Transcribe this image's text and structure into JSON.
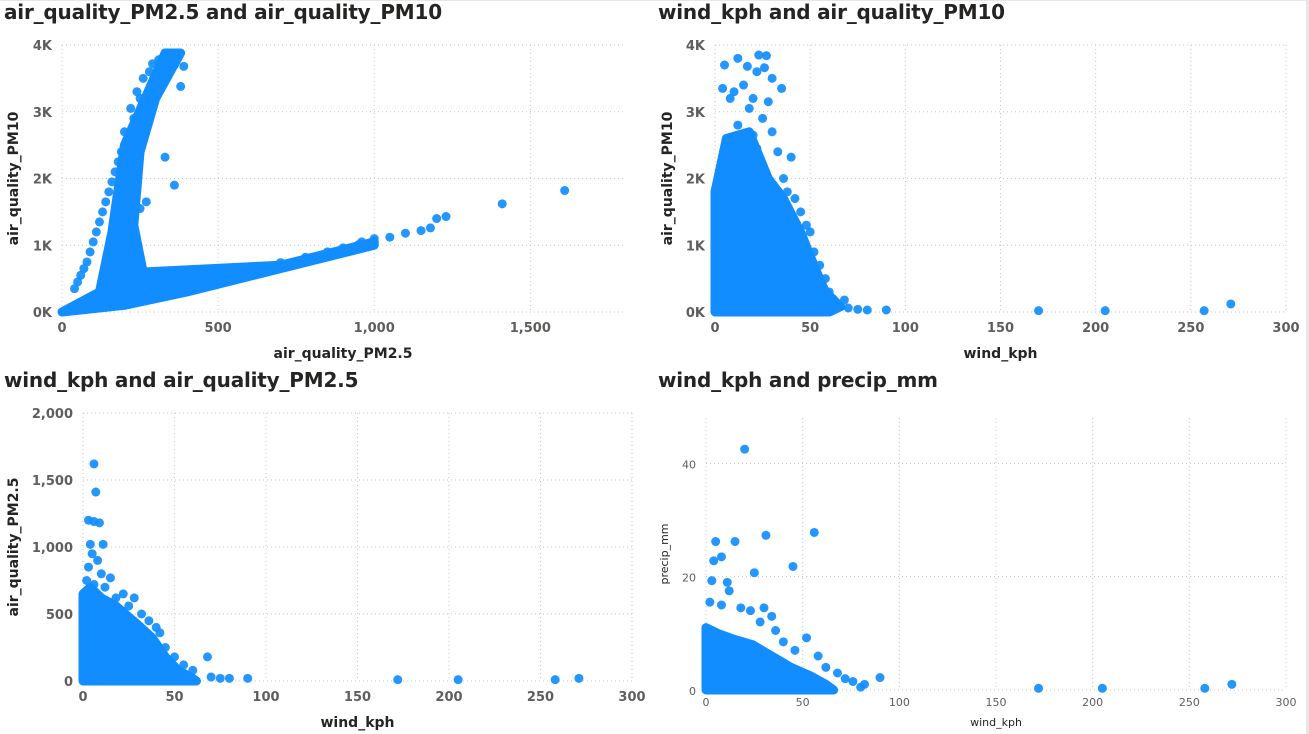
{
  "chart_data": [
    {
      "type": "scatter",
      "title": "air_quality_PM2.5 and air_quality_PM10",
      "xlabel": "air_quality_PM2.5",
      "ylabel": "air_quality_PM10",
      "xlim": [
        0,
        1800
      ],
      "ylim": [
        0,
        4000
      ],
      "xticks": [
        0,
        500,
        1000,
        1500
      ],
      "xtick_labels": [
        "0",
        "500",
        "1,000",
        "1,500"
      ],
      "yticks": [
        0,
        1000,
        2000,
        3000,
        4000
      ],
      "ytick_labels": [
        "0K",
        "1K",
        "2K",
        "3K",
        "4K"
      ],
      "grid": true,
      "points": [
        {
          "x": 330,
          "y": 3850
        },
        {
          "x": 350,
          "y": 3870
        },
        {
          "x": 310,
          "y": 3780
        },
        {
          "x": 290,
          "y": 3720
        },
        {
          "x": 360,
          "y": 3700
        },
        {
          "x": 390,
          "y": 3680
        },
        {
          "x": 280,
          "y": 3600
        },
        {
          "x": 260,
          "y": 3500
        },
        {
          "x": 300,
          "y": 3450
        },
        {
          "x": 380,
          "y": 3380
        },
        {
          "x": 240,
          "y": 3300
        },
        {
          "x": 250,
          "y": 3200
        },
        {
          "x": 220,
          "y": 3050
        },
        {
          "x": 230,
          "y": 2900
        },
        {
          "x": 200,
          "y": 2700
        },
        {
          "x": 210,
          "y": 2550
        },
        {
          "x": 190,
          "y": 2400
        },
        {
          "x": 180,
          "y": 2250
        },
        {
          "x": 170,
          "y": 2100
        },
        {
          "x": 160,
          "y": 1950
        },
        {
          "x": 150,
          "y": 1800
        },
        {
          "x": 140,
          "y": 1650
        },
        {
          "x": 330,
          "y": 2320
        },
        {
          "x": 360,
          "y": 1900
        },
        {
          "x": 270,
          "y": 1650
        },
        {
          "x": 250,
          "y": 1550
        },
        {
          "x": 230,
          "y": 1400
        },
        {
          "x": 215,
          "y": 1250
        },
        {
          "x": 220,
          "y": 1100
        },
        {
          "x": 190,
          "y": 1500
        },
        {
          "x": 130,
          "y": 1500
        },
        {
          "x": 120,
          "y": 1350
        },
        {
          "x": 110,
          "y": 1200
        },
        {
          "x": 100,
          "y": 1050
        },
        {
          "x": 90,
          "y": 900
        },
        {
          "x": 80,
          "y": 750
        },
        {
          "x": 70,
          "y": 650
        },
        {
          "x": 60,
          "y": 550
        },
        {
          "x": 50,
          "y": 450
        },
        {
          "x": 40,
          "y": 350
        },
        {
          "x": 450,
          "y": 450
        },
        {
          "x": 550,
          "y": 560
        },
        {
          "x": 620,
          "y": 650
        },
        {
          "x": 700,
          "y": 740
        },
        {
          "x": 780,
          "y": 820
        },
        {
          "x": 850,
          "y": 900
        },
        {
          "x": 900,
          "y": 960
        },
        {
          "x": 950,
          "y": 1010
        },
        {
          "x": 1000,
          "y": 1060
        },
        {
          "x": 1050,
          "y": 1120
        },
        {
          "x": 1100,
          "y": 1180
        },
        {
          "x": 1150,
          "y": 1220
        },
        {
          "x": 1180,
          "y": 1260
        },
        {
          "x": 1200,
          "y": 1400
        },
        {
          "x": 1230,
          "y": 1430
        },
        {
          "x": 1410,
          "y": 1620
        },
        {
          "x": 1610,
          "y": 1820
        },
        {
          "x": 1000,
          "y": 1100
        },
        {
          "x": 960,
          "y": 1050
        }
      ],
      "dense_regions": [
        [
          [
            0,
            0
          ],
          [
            120,
            300
          ],
          [
            160,
            1200
          ],
          [
            200,
            2500
          ],
          [
            330,
            3880
          ],
          [
            380,
            3880
          ],
          [
            300,
            3200
          ],
          [
            250,
            2400
          ],
          [
            230,
            1300
          ],
          [
            260,
            600
          ],
          [
            700,
            700
          ],
          [
            1000,
            1050
          ],
          [
            1000,
            1000
          ],
          [
            400,
            300
          ],
          [
            200,
            100
          ],
          [
            0,
            0
          ]
        ]
      ]
    },
    {
      "type": "scatter",
      "title": "wind_kph and air_quality_PM10",
      "xlabel": "wind_kph",
      "ylabel": "air_quality_PM10",
      "xlim": [
        0,
        300
      ],
      "ylim": [
        0,
        4000
      ],
      "xticks": [
        0,
        50,
        100,
        150,
        200,
        250,
        300
      ],
      "xtick_labels": [
        "0",
        "50",
        "100",
        "150",
        "200",
        "250",
        "300"
      ],
      "yticks": [
        0,
        1000,
        2000,
        3000,
        4000
      ],
      "ytick_labels": [
        "0K",
        "1K",
        "2K",
        "3K",
        "4K"
      ],
      "grid": true,
      "points": [
        {
          "x": 23,
          "y": 3850
        },
        {
          "x": 27,
          "y": 3840
        },
        {
          "x": 12,
          "y": 3800
        },
        {
          "x": 5,
          "y": 3700
        },
        {
          "x": 17,
          "y": 3680
        },
        {
          "x": 26,
          "y": 3660
        },
        {
          "x": 22,
          "y": 3600
        },
        {
          "x": 30,
          "y": 3500
        },
        {
          "x": 15,
          "y": 3400
        },
        {
          "x": 35,
          "y": 3350
        },
        {
          "x": 4,
          "y": 3350
        },
        {
          "x": 10,
          "y": 3300
        },
        {
          "x": 20,
          "y": 3200
        },
        {
          "x": 8,
          "y": 3200
        },
        {
          "x": 28,
          "y": 3150
        },
        {
          "x": 18,
          "y": 3050
        },
        {
          "x": 25,
          "y": 2900
        },
        {
          "x": 12,
          "y": 2800
        },
        {
          "x": 30,
          "y": 2700
        },
        {
          "x": 20,
          "y": 2650
        },
        {
          "x": 10,
          "y": 2600
        },
        {
          "x": 14,
          "y": 2500
        },
        {
          "x": 22,
          "y": 2450
        },
        {
          "x": 33,
          "y": 2400
        },
        {
          "x": 40,
          "y": 2320
        },
        {
          "x": 5,
          "y": 2200
        },
        {
          "x": 26,
          "y": 2100
        },
        {
          "x": 36,
          "y": 2000
        },
        {
          "x": 12,
          "y": 1950
        },
        {
          "x": 30,
          "y": 1800
        },
        {
          "x": 38,
          "y": 1800
        },
        {
          "x": 20,
          "y": 1700
        },
        {
          "x": 42,
          "y": 1700
        },
        {
          "x": 45,
          "y": 1500
        },
        {
          "x": 48,
          "y": 1300
        },
        {
          "x": 50,
          "y": 1200
        },
        {
          "x": 52,
          "y": 900
        },
        {
          "x": 55,
          "y": 700
        },
        {
          "x": 58,
          "y": 500
        },
        {
          "x": 60,
          "y": 300
        },
        {
          "x": 62,
          "y": 200
        },
        {
          "x": 68,
          "y": 180
        },
        {
          "x": 70,
          "y": 60
        },
        {
          "x": 75,
          "y": 40
        },
        {
          "x": 80,
          "y": 30
        },
        {
          "x": 90,
          "y": 30
        },
        {
          "x": 170,
          "y": 20
        },
        {
          "x": 205,
          "y": 20
        },
        {
          "x": 257,
          "y": 20
        },
        {
          "x": 271,
          "y": 120
        }
      ],
      "dense_regions": [
        [
          [
            0,
            0
          ],
          [
            0,
            1800
          ],
          [
            6,
            2600
          ],
          [
            18,
            2700
          ],
          [
            28,
            2000
          ],
          [
            36,
            1700
          ],
          [
            45,
            1200
          ],
          [
            52,
            700
          ],
          [
            58,
            300
          ],
          [
            66,
            80
          ],
          [
            60,
            0
          ],
          [
            0,
            0
          ]
        ]
      ]
    },
    {
      "type": "scatter",
      "title": "wind_kph and air_quality_PM2.5",
      "xlabel": "wind_kph",
      "ylabel": "air_quality_PM2.5",
      "xlim": [
        0,
        300
      ],
      "ylim": [
        0,
        2000
      ],
      "xticks": [
        0,
        50,
        100,
        150,
        200,
        250,
        300
      ],
      "xtick_labels": [
        "0",
        "50",
        "100",
        "150",
        "200",
        "250",
        "300"
      ],
      "yticks": [
        0,
        500,
        1000,
        1500,
        2000
      ],
      "ytick_labels": [
        "0",
        "500",
        "1,000",
        "1,500",
        "2,000"
      ],
      "grid": true,
      "points": [
        {
          "x": 6,
          "y": 1620
        },
        {
          "x": 7,
          "y": 1410
        },
        {
          "x": 3,
          "y": 1200
        },
        {
          "x": 6,
          "y": 1190
        },
        {
          "x": 9,
          "y": 1180
        },
        {
          "x": 4,
          "y": 1020
        },
        {
          "x": 11,
          "y": 1020
        },
        {
          "x": 5,
          "y": 950
        },
        {
          "x": 8,
          "y": 900
        },
        {
          "x": 3,
          "y": 850
        },
        {
          "x": 10,
          "y": 800
        },
        {
          "x": 15,
          "y": 770
        },
        {
          "x": 2,
          "y": 750
        },
        {
          "x": 6,
          "y": 720
        },
        {
          "x": 12,
          "y": 700
        },
        {
          "x": 22,
          "y": 650
        },
        {
          "x": 18,
          "y": 620
        },
        {
          "x": 28,
          "y": 620
        },
        {
          "x": 25,
          "y": 560
        },
        {
          "x": 32,
          "y": 500
        },
        {
          "x": 36,
          "y": 450
        },
        {
          "x": 40,
          "y": 400
        },
        {
          "x": 42,
          "y": 360
        },
        {
          "x": 45,
          "y": 250
        },
        {
          "x": 50,
          "y": 180
        },
        {
          "x": 55,
          "y": 120
        },
        {
          "x": 60,
          "y": 80
        },
        {
          "x": 68,
          "y": 180
        },
        {
          "x": 70,
          "y": 30
        },
        {
          "x": 75,
          "y": 20
        },
        {
          "x": 80,
          "y": 20
        },
        {
          "x": 90,
          "y": 20
        },
        {
          "x": 172,
          "y": 10
        },
        {
          "x": 205,
          "y": 10
        },
        {
          "x": 258,
          "y": 10
        },
        {
          "x": 271,
          "y": 20
        }
      ],
      "dense_regions": [
        [
          [
            0,
            0
          ],
          [
            0,
            650
          ],
          [
            4,
            700
          ],
          [
            10,
            620
          ],
          [
            18,
            560
          ],
          [
            30,
            420
          ],
          [
            38,
            320
          ],
          [
            45,
            180
          ],
          [
            52,
            80
          ],
          [
            60,
            20
          ],
          [
            62,
            0
          ],
          [
            0,
            0
          ]
        ]
      ]
    },
    {
      "type": "scatter",
      "title": "wind_kph and precip_mm",
      "xlabel": "wind_kph",
      "ylabel": "precip_mm",
      "xlim": [
        0,
        300
      ],
      "ylim": [
        0,
        48
      ],
      "xticks": [
        0,
        50,
        100,
        150,
        200,
        250,
        300
      ],
      "xtick_labels": [
        "0",
        "50",
        "100",
        "150",
        "200",
        "250",
        "300"
      ],
      "yticks": [
        0,
        20,
        40
      ],
      "ytick_labels": [
        "0",
        "20",
        "40"
      ],
      "grid": true,
      "points": [
        {
          "x": 20,
          "y": 42.5
        },
        {
          "x": 56,
          "y": 27.8
        },
        {
          "x": 31,
          "y": 27.3
        },
        {
          "x": 5,
          "y": 26.2
        },
        {
          "x": 15,
          "y": 26.2
        },
        {
          "x": 8,
          "y": 23.5
        },
        {
          "x": 4,
          "y": 22.8
        },
        {
          "x": 45,
          "y": 21.8
        },
        {
          "x": 25,
          "y": 20.7
        },
        {
          "x": 3,
          "y": 19.3
        },
        {
          "x": 11,
          "y": 19.0
        },
        {
          "x": 12,
          "y": 17.5
        },
        {
          "x": 2,
          "y": 15.5
        },
        {
          "x": 8,
          "y": 15.0
        },
        {
          "x": 18,
          "y": 14.5
        },
        {
          "x": 23,
          "y": 14.0
        },
        {
          "x": 30,
          "y": 14.5
        },
        {
          "x": 34,
          "y": 13.0
        },
        {
          "x": 28,
          "y": 12.0
        },
        {
          "x": 36,
          "y": 10.5
        },
        {
          "x": 52,
          "y": 9.2
        },
        {
          "x": 40,
          "y": 8.5
        },
        {
          "x": 46,
          "y": 7.0
        },
        {
          "x": 58,
          "y": 6.0
        },
        {
          "x": 62,
          "y": 4.0
        },
        {
          "x": 68,
          "y": 3.0
        },
        {
          "x": 72,
          "y": 2.0
        },
        {
          "x": 76,
          "y": 1.5
        },
        {
          "x": 82,
          "y": 1.0
        },
        {
          "x": 90,
          "y": 2.2
        },
        {
          "x": 80,
          "y": 0.5
        },
        {
          "x": 172,
          "y": 0.3
        },
        {
          "x": 205,
          "y": 0.3
        },
        {
          "x": 258,
          "y": 0.3
        },
        {
          "x": 272,
          "y": 1.0
        }
      ],
      "dense_regions": [
        [
          [
            0,
            0
          ],
          [
            0,
            11
          ],
          [
            6,
            10
          ],
          [
            14,
            9
          ],
          [
            24,
            8
          ],
          [
            34,
            6
          ],
          [
            44,
            4
          ],
          [
            54,
            2.5
          ],
          [
            62,
            1
          ],
          [
            66,
            0
          ],
          [
            0,
            0
          ]
        ]
      ]
    }
  ],
  "colors": {
    "marker": "#118DFF",
    "title": "#252423",
    "tick": "#605e5c",
    "grid": "#c8c8c8"
  }
}
